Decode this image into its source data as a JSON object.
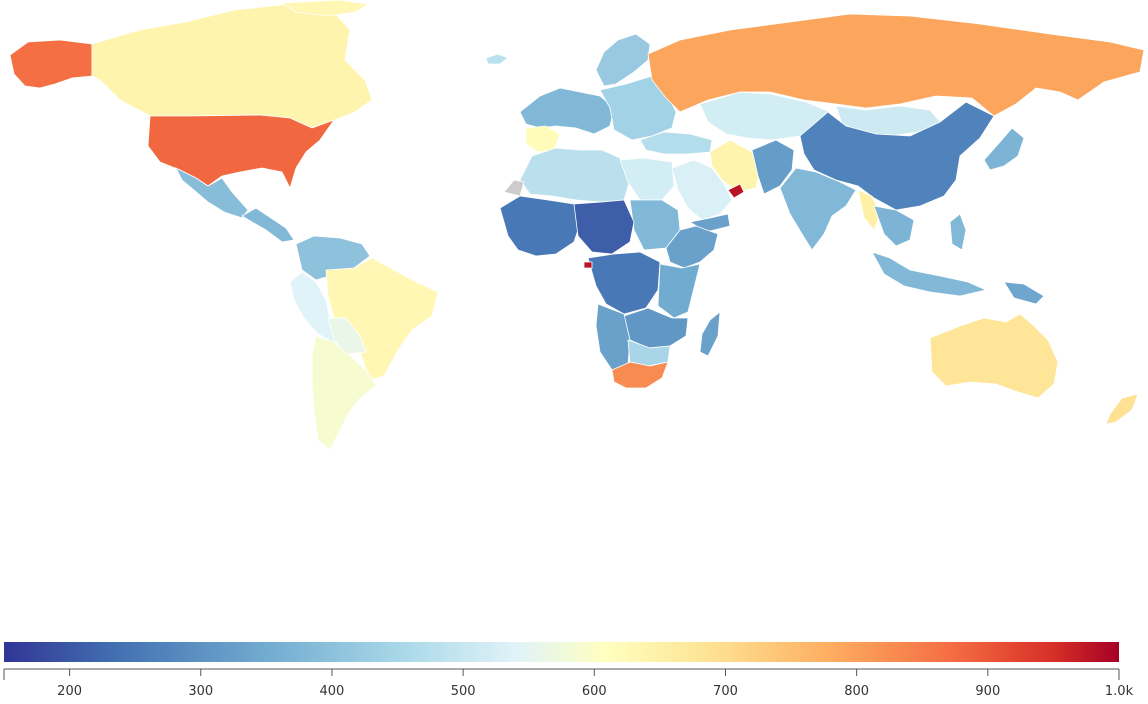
{
  "colors": {
    "background": "#ffffff",
    "country_border": "#ffffff",
    "no_data": "#cccccc",
    "scale_low": "#313695",
    "scale_mid": "#ffffbf",
    "scale_high": "#a50026"
  },
  "legend": {
    "domain": [
      150,
      1000
    ],
    "ticks": [
      {
        "value": 200,
        "label": "200"
      },
      {
        "value": 300,
        "label": "300"
      },
      {
        "value": 400,
        "label": "400"
      },
      {
        "value": 500,
        "label": "500"
      },
      {
        "value": 600,
        "label": "600"
      },
      {
        "value": 700,
        "label": "700"
      },
      {
        "value": 800,
        "label": "800"
      },
      {
        "value": 900,
        "label": "900"
      },
      {
        "value": 1000,
        "label": "1.0k"
      }
    ]
  },
  "regions": [
    {
      "id": "alaska",
      "value": 870
    },
    {
      "id": "canada",
      "value": 640
    },
    {
      "id": "usa",
      "value": 880
    },
    {
      "id": "mexico",
      "value": 390
    },
    {
      "id": "central-america",
      "value": 380
    },
    {
      "id": "colombia-venezuela",
      "value": 400
    },
    {
      "id": "peru-ecuador",
      "value": 540
    },
    {
      "id": "brazil",
      "value": 630
    },
    {
      "id": "bolivia",
      "value": 560
    },
    {
      "id": "argentina-chile",
      "value": 590
    },
    {
      "id": "greenland",
      "value": 630
    },
    {
      "id": "iceland",
      "value": 480
    },
    {
      "id": "scandinavia",
      "value": 420
    },
    {
      "id": "western-europe",
      "value": 380
    },
    {
      "id": "iberia",
      "value": 620
    },
    {
      "id": "eastern-europe",
      "value": 440
    },
    {
      "id": "russia",
      "value": 790
    },
    {
      "id": "kazakhstan",
      "value": 520
    },
    {
      "id": "mongolia",
      "value": 510
    },
    {
      "id": "china",
      "value": 270
    },
    {
      "id": "japan-korea",
      "value": 370
    },
    {
      "id": "turkey-caucasus",
      "value": 470
    },
    {
      "id": "iran",
      "value": 640
    },
    {
      "id": "saudi-arabia",
      "value": 530
    },
    {
      "id": "uae",
      "value": 980
    },
    {
      "id": "yemen",
      "value": 330
    },
    {
      "id": "afghanistan-pakistan",
      "value": 320
    },
    {
      "id": "india",
      "value": 380
    },
    {
      "id": "myanmar",
      "value": 650
    },
    {
      "id": "southeast-asia",
      "value": 370
    },
    {
      "id": "indonesia",
      "value": 380
    },
    {
      "id": "philippines",
      "value": 380
    },
    {
      "id": "png",
      "value": 340
    },
    {
      "id": "australia",
      "value": 680
    },
    {
      "id": "new-zealand",
      "value": 690
    },
    {
      "id": "north-africa-west",
      "value": 480
    },
    {
      "id": "libya-egypt",
      "value": 520
    },
    {
      "id": "sudan",
      "value": 380
    },
    {
      "id": "west-africa",
      "value": 250
    },
    {
      "id": "chad-niger",
      "value": 210
    },
    {
      "id": "ethiopia-horn",
      "value": 330
    },
    {
      "id": "central-africa",
      "value": 250
    },
    {
      "id": "east-africa",
      "value": 350
    },
    {
      "id": "southern-central-africa",
      "value": 310
    },
    {
      "id": "angola-namibia",
      "value": 330
    },
    {
      "id": "botswana-zimbabwe",
      "value": 450
    },
    {
      "id": "south-africa",
      "value": 830
    },
    {
      "id": "madagascar",
      "value": 330
    },
    {
      "id": "equatorial-guinea",
      "value": 980
    },
    {
      "id": "western-sahara",
      "value": null
    }
  ]
}
